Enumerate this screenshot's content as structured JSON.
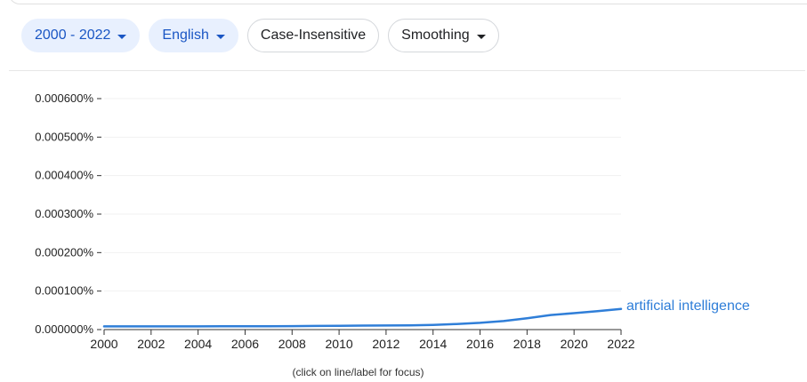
{
  "controls": {
    "year_range": "2000 - 2022",
    "language": "English",
    "case": "Case-Insensitive",
    "smoothing": "Smoothing"
  },
  "footnote": "(click on line/label for focus)",
  "colors": {
    "series": "#2f7ed8",
    "chip_fill": "#e8f0fe",
    "chip_text": "#1a56c4"
  },
  "chart_data": {
    "type": "line",
    "x": [
      2000,
      2001,
      2002,
      2003,
      2004,
      2005,
      2006,
      2007,
      2008,
      2009,
      2010,
      2011,
      2012,
      2013,
      2014,
      2015,
      2016,
      2017,
      2018,
      2019,
      2020,
      2021,
      2022
    ],
    "xticks": [
      2000,
      2002,
      2004,
      2006,
      2008,
      2010,
      2012,
      2014,
      2016,
      2018,
      2020,
      2022
    ],
    "yticks": [
      "0.000000%",
      "0.000100%",
      "0.000200%",
      "0.000300%",
      "0.000400%",
      "0.000500%",
      "0.000600%"
    ],
    "ylim": [
      0,
      0.0006
    ],
    "xlim": [
      2000,
      2022
    ],
    "grid": true,
    "series": [
      {
        "name": "artificial intelligence",
        "values": [
          8.3e-06,
          8.4e-06,
          8.4e-06,
          8.4e-06,
          8.4e-06,
          8.5e-06,
          8.6e-06,
          8.7e-06,
          8.9e-06,
          9.4e-06,
          9.9e-06,
          1.03e-05,
          1.06e-05,
          1.1e-05,
          1.22e-05,
          1.45e-05,
          1.75e-05,
          2.22e-05,
          2.95e-05,
          3.78e-05,
          4.28e-05,
          4.78e-05,
          5.35e-05
        ]
      }
    ]
  }
}
